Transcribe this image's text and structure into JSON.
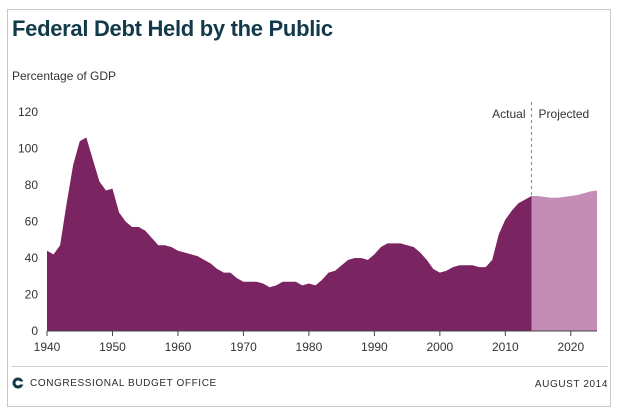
{
  "title": "Federal Debt Held by the Public",
  "footer": {
    "source": "CONGRESSIONAL BUDGET OFFICE",
    "date": "AUGUST 2014",
    "logo_icon": "cbo-logo-icon"
  },
  "chart_data": {
    "type": "area",
    "title": "Federal Debt Held by the Public",
    "ylabel": "Percentage of GDP",
    "xlabel": "",
    "xlim": [
      1940,
      2024
    ],
    "ylim": [
      0,
      120
    ],
    "x_ticks": [
      1940,
      1950,
      1960,
      1970,
      1980,
      1990,
      2000,
      2010,
      2020
    ],
    "y_ticks": [
      0,
      20,
      40,
      60,
      80,
      100,
      120
    ],
    "grid": false,
    "divider_year": 2014,
    "colors": {
      "actual": "#7b2462",
      "projected": "#c48db5",
      "axis": "#444444",
      "divider": "#888888"
    },
    "series": [
      {
        "name": "Actual",
        "x": [
          1940,
          1941,
          1942,
          1943,
          1944,
          1945,
          1946,
          1947,
          1948,
          1949,
          1950,
          1951,
          1952,
          1953,
          1954,
          1955,
          1956,
          1957,
          1958,
          1959,
          1960,
          1961,
          1962,
          1963,
          1964,
          1965,
          1966,
          1967,
          1968,
          1969,
          1970,
          1971,
          1972,
          1973,
          1974,
          1975,
          1976,
          1977,
          1978,
          1979,
          1980,
          1981,
          1982,
          1983,
          1984,
          1985,
          1986,
          1987,
          1988,
          1989,
          1990,
          1991,
          1992,
          1993,
          1994,
          1995,
          1996,
          1997,
          1998,
          1999,
          2000,
          2001,
          2002,
          2003,
          2004,
          2005,
          2006,
          2007,
          2008,
          2009,
          2010,
          2011,
          2012,
          2013,
          2014
        ],
        "values": [
          44,
          42,
          47,
          70,
          91,
          104,
          106,
          94,
          82,
          77,
          78,
          65,
          60,
          57,
          57,
          55,
          51,
          47,
          47,
          46,
          44,
          43,
          42,
          41,
          39,
          37,
          34,
          32,
          32,
          29,
          27,
          27,
          27,
          26,
          24,
          25,
          27,
          27,
          27,
          25,
          26,
          25,
          28,
          32,
          33,
          36,
          39,
          40,
          40,
          39,
          42,
          46,
          48,
          48,
          48,
          47,
          46,
          43,
          39,
          34,
          32,
          33,
          35,
          36,
          36,
          36,
          35,
          35,
          39,
          53,
          61,
          66,
          70,
          72,
          74
        ]
      },
      {
        "name": "Projected",
        "x": [
          2014,
          2015,
          2016,
          2017,
          2018,
          2019,
          2020,
          2021,
          2022,
          2023,
          2024
        ],
        "values": [
          74,
          74,
          73.5,
          73,
          73,
          73.5,
          74,
          74.5,
          75.5,
          76.5,
          77
        ]
      }
    ],
    "annotations": [
      {
        "label": "Actual",
        "position": "left of divider"
      },
      {
        "label": "Projected",
        "position": "right of divider"
      }
    ]
  }
}
